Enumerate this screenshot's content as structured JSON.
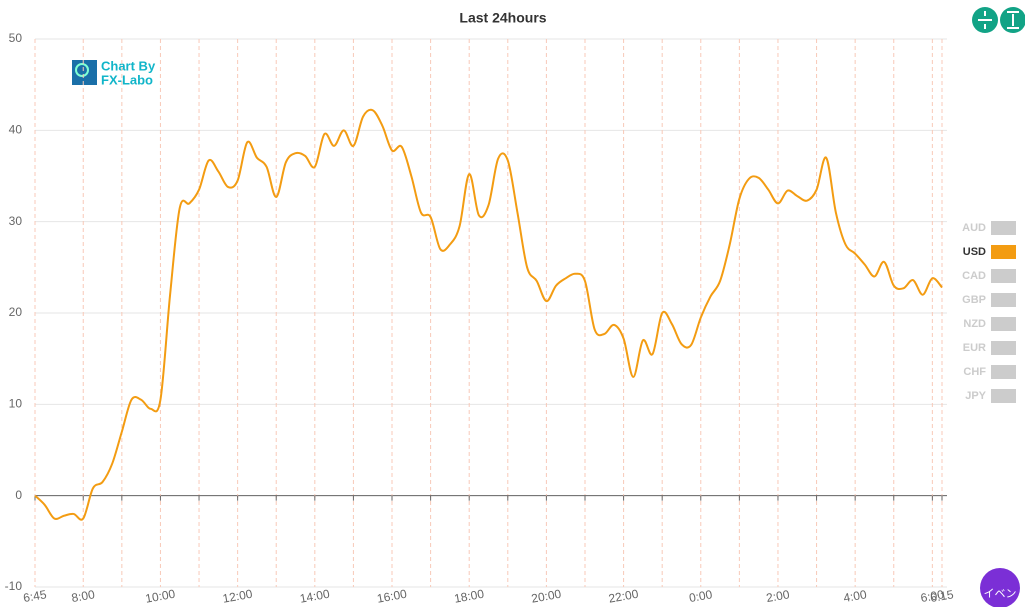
{
  "chart_data": {
    "type": "line",
    "title": "Last 24hours",
    "x": [
      "6:45",
      "7:00",
      "7:15",
      "7:30",
      "7:45",
      "8:00",
      "8:15",
      "8:30",
      "8:45",
      "9:00",
      "9:15",
      "9:30",
      "9:45",
      "10:00",
      "10:15",
      "10:30",
      "10:45",
      "11:00",
      "11:15",
      "11:30",
      "11:45",
      "12:00",
      "12:15",
      "12:30",
      "12:45",
      "13:00",
      "13:15",
      "13:30",
      "13:45",
      "14:00",
      "14:15",
      "14:30",
      "14:45",
      "15:00",
      "15:15",
      "15:30",
      "15:45",
      "16:00",
      "16:15",
      "16:30",
      "16:45",
      "17:00",
      "17:15",
      "17:30",
      "17:45",
      "18:00",
      "18:15",
      "18:30",
      "18:45",
      "19:00",
      "19:15",
      "19:30",
      "19:45",
      "20:00",
      "20:15",
      "20:30",
      "20:45",
      "21:00",
      "21:15",
      "21:30",
      "21:45",
      "22:00",
      "22:15",
      "22:30",
      "22:45",
      "23:00",
      "23:15",
      "23:30",
      "23:45",
      "0:00",
      "0:15",
      "0:30",
      "0:45",
      "1:00",
      "1:15",
      "1:30",
      "1:45",
      "2:00",
      "2:15",
      "2:30",
      "2:45",
      "3:00",
      "3:15",
      "3:30",
      "3:45",
      "4:00",
      "4:15",
      "4:30",
      "4:45",
      "5:00",
      "5:15",
      "5:30",
      "5:45",
      "6:00",
      "6:15"
    ],
    "series": [
      {
        "color": "#f39c12",
        "values": [
          0,
          -1,
          -2.5,
          -2.2,
          -2,
          -2.5,
          0.8,
          1.5,
          3.5,
          7,
          10.5,
          10.5,
          9.5,
          10.5,
          22,
          31.5,
          32,
          33.5,
          36.7,
          35.5,
          33.8,
          34.5,
          38.7,
          37,
          36,
          32.7,
          36.5,
          37.5,
          37.2,
          36,
          39.6,
          38.3,
          40,
          38.3,
          41.5,
          42.2,
          40.5,
          37.8,
          38.2,
          35,
          31,
          30.5,
          27,
          27.5,
          29.5,
          35.2,
          30.7,
          31.8,
          36.9,
          36.7,
          31,
          25,
          23.5,
          21.3,
          23,
          23.8,
          24.3,
          23.5,
          18.2,
          17.7,
          18.7,
          17.2,
          13,
          17,
          15.5,
          20,
          18.8,
          16.6,
          16.5,
          19.5,
          21.8,
          23.5,
          27.5,
          32.5,
          34.7,
          34.8,
          33.5,
          32,
          33.4,
          32.8,
          32.3,
          33.5,
          37,
          31,
          27.5,
          26.5,
          25.3,
          24,
          25.6,
          23,
          22.7,
          23.6,
          22,
          23.8,
          22.8
        ]
      }
    ],
    "xticks": [
      "6:45",
      "8:00",
      "10:00",
      "12:00",
      "14:00",
      "16:00",
      "18:00",
      "20:00",
      "22:00",
      "0:00",
      "2:00",
      "4:00",
      "6:00",
      "6:15"
    ],
    "xgrid_minor": [
      "9:00",
      "11:00",
      "13:00",
      "15:00",
      "17:00",
      "19:00",
      "21:00",
      "23:00",
      "1:00",
      "3:00",
      "5:00"
    ],
    "ylim": [
      -10,
      50
    ],
    "yticks": [
      -10,
      0,
      10,
      20,
      30,
      40,
      50
    ],
    "grid": true,
    "legend": {
      "items": [
        "AUD",
        "USD",
        "CAD",
        "GBP",
        "NZD",
        "EUR",
        "CHF",
        "JPY"
      ],
      "active_index": 1,
      "inactive_color": "#cccccc"
    }
  },
  "logo": {
    "line1": "Chart By",
    "line2": "FX-Labo"
  },
  "event_button": "イベン"
}
